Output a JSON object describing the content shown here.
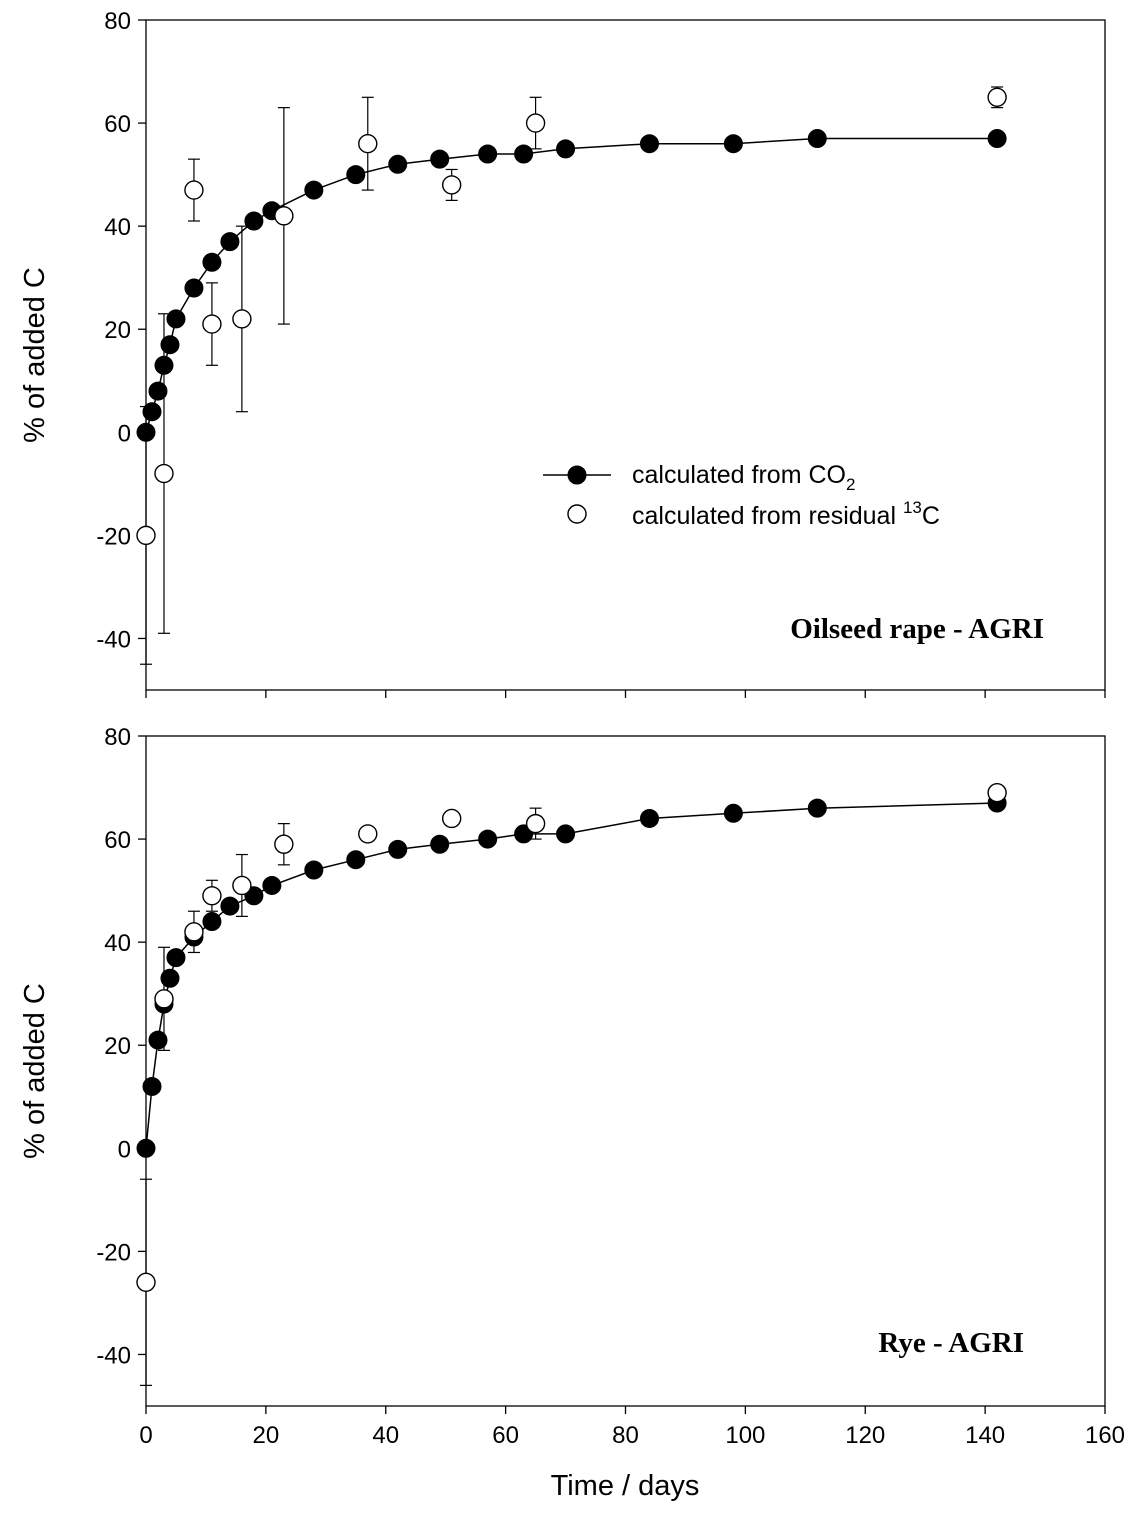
{
  "chart_data": [
    {
      "type": "scatter",
      "title": "",
      "panel_label": "Oilseed rape - AGRI",
      "ylabel": "% of added C",
      "xlabel": "",
      "xlim": [
        0,
        160
      ],
      "ylim": [
        -50,
        80
      ],
      "xticks": [
        "0",
        "20",
        "40",
        "60",
        "80",
        "100",
        "120",
        "140",
        "160"
      ],
      "yticks": [
        "-40",
        "-20",
        "0",
        "20",
        "40",
        "60",
        "80"
      ],
      "grid": false,
      "legend": {
        "placement": "center-right",
        "entries": [
          {
            "label_main": "calculated from CO",
            "label_sub": "2",
            "marker": "filled-circle-line"
          },
          {
            "label_main": "calculated from residual ",
            "label_sup": "13",
            "label_tail": "C",
            "marker": "open-circle"
          }
        ]
      },
      "series": [
        {
          "name": "calculated from CO2",
          "style": "filled",
          "connected": true,
          "x": [
            0,
            1,
            2,
            3,
            4,
            5,
            8,
            11,
            14,
            18,
            21,
            28,
            35,
            42,
            49,
            57,
            63,
            70,
            84,
            98,
            112,
            142
          ],
          "y": [
            0,
            4,
            8,
            13,
            17,
            22,
            28,
            33,
            37,
            41,
            43,
            47,
            50,
            52,
            53,
            54,
            54,
            55,
            56,
            56,
            57,
            57
          ]
        },
        {
          "name": "calculated from residual 13C",
          "style": "open",
          "connected": false,
          "x": [
            0,
            3,
            8,
            11,
            16,
            23,
            37,
            51,
            65,
            142
          ],
          "y": [
            -20,
            -8,
            47,
            21,
            22,
            42,
            56,
            48,
            60,
            65
          ],
          "err_low": [
            -45,
            -39,
            41,
            13,
            4,
            21,
            47,
            45,
            55,
            63
          ],
          "err_high": [
            5,
            23,
            53,
            29,
            40,
            63,
            65,
            51,
            65,
            67
          ]
        }
      ]
    },
    {
      "type": "scatter",
      "title": "",
      "panel_label": "Rye - AGRI",
      "ylabel": "% of added C",
      "xlabel": "Time / days",
      "xlim": [
        0,
        160
      ],
      "ylim": [
        -50,
        80
      ],
      "xticks": [
        "0",
        "20",
        "40",
        "60",
        "80",
        "100",
        "120",
        "140",
        "160"
      ],
      "yticks": [
        "-40",
        "-20",
        "0",
        "20",
        "40",
        "60",
        "80"
      ],
      "grid": false,
      "series": [
        {
          "name": "calculated from CO2",
          "style": "filled",
          "connected": true,
          "x": [
            0,
            1,
            2,
            3,
            4,
            5,
            8,
            11,
            14,
            18,
            21,
            28,
            35,
            42,
            49,
            57,
            63,
            70,
            84,
            98,
            112,
            142
          ],
          "y": [
            0,
            12,
            21,
            28,
            33,
            37,
            41,
            44,
            47,
            49,
            51,
            54,
            56,
            58,
            59,
            60,
            61,
            61,
            64,
            65,
            66,
            67
          ]
        },
        {
          "name": "calculated from residual 13C",
          "style": "open",
          "connected": false,
          "x": [
            0,
            3,
            8,
            11,
            16,
            23,
            37,
            51,
            65,
            142
          ],
          "y": [
            -26,
            29,
            42,
            49,
            51,
            59,
            61,
            64,
            63,
            69
          ],
          "err_low": [
            -46,
            19,
            38,
            46,
            45,
            55,
            60,
            64,
            60,
            68
          ],
          "err_high": [
            -6,
            39,
            46,
            52,
            57,
            63,
            62,
            64,
            66,
            70
          ]
        }
      ]
    }
  ]
}
